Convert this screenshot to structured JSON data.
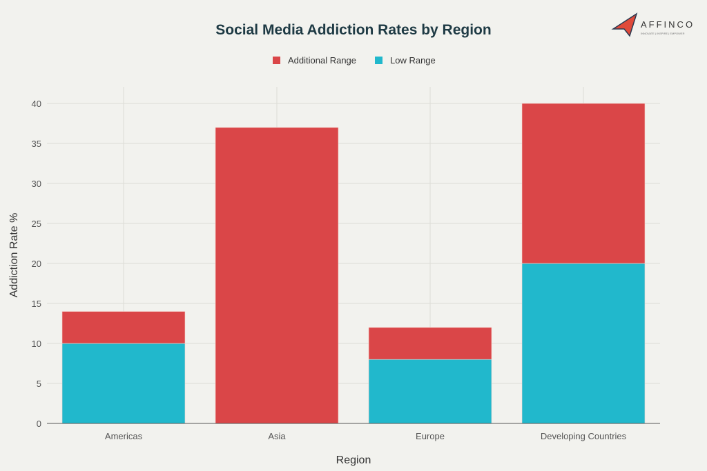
{
  "logo": {
    "text": "AFFINCO",
    "tagline": "INNOVATE | INSPIRE | EMPOWER"
  },
  "colors": {
    "additional": "#da4648",
    "low": "#21b8cc",
    "title": "#1e3a44"
  },
  "chart_data": {
    "type": "bar",
    "stacked": true,
    "title": "Social Media Addiction Rates by Region",
    "xlabel": "Region",
    "ylabel": "Addiction Rate %",
    "ylim": [
      0,
      42
    ],
    "yticks": [
      0,
      5,
      10,
      15,
      20,
      25,
      30,
      35,
      40
    ],
    "grid": true,
    "legend_placement": "top-center",
    "categories": [
      "Americas",
      "Asia",
      "Europe",
      "Developing Countries"
    ],
    "series": [
      {
        "name": "Low Range",
        "values": [
          10,
          0,
          8,
          20
        ]
      },
      {
        "name": "Additional Range",
        "values": [
          4,
          37,
          4,
          20
        ]
      }
    ],
    "legend_order": [
      "Additional Range",
      "Low Range"
    ]
  }
}
